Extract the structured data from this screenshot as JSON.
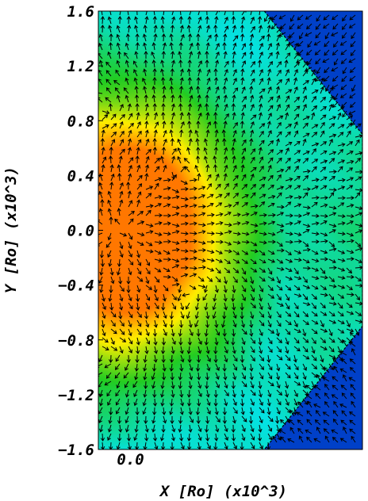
{
  "chart_data": {
    "type": "heatmap",
    "title": "",
    "xlabel": "X [Ro] (x10^3)",
    "ylabel": "Y [Ro] (x10^3)",
    "xlim": [
      -0.15,
      1.6
    ],
    "ylim": [
      -1.6,
      1.6
    ],
    "x_ticks": [
      {
        "value": 0.0,
        "label": "0.0"
      }
    ],
    "y_ticks": [
      {
        "value": 1.6,
        "label": "1.6"
      },
      {
        "value": 1.2,
        "label": "1.2"
      },
      {
        "value": 0.8,
        "label": "0.8"
      },
      {
        "value": 0.4,
        "label": "0.4"
      },
      {
        "value": 0.0,
        "label": "0.0"
      },
      {
        "value": -0.4,
        "label": "−0.4"
      },
      {
        "value": -0.8,
        "label": "−0.8"
      },
      {
        "value": -1.2,
        "label": "−1.2"
      },
      {
        "value": -1.6,
        "label": "−1.6"
      }
    ],
    "colormap": [
      "#0033cc",
      "#00e5ff",
      "#22cc22",
      "#ffee00",
      "#ff7700"
    ],
    "background_color": "#0044cc",
    "hot_spot": {
      "x": 0.0,
      "y": 0.0
    },
    "hot_spot_value": 1.0,
    "shock_boundary": [
      [
        0.95,
        1.6
      ],
      [
        1.6,
        0.7
      ],
      [
        1.6,
        -0.7
      ],
      [
        0.95,
        -1.6
      ]
    ],
    "vortices": [
      [
        0.5,
        0.35
      ],
      [
        0.55,
        -0.35
      ],
      [
        0.0,
        0.9
      ],
      [
        0.0,
        -0.9
      ]
    ],
    "overlay": "velocity vectors",
    "vector_color": "#000000",
    "grid": false
  }
}
